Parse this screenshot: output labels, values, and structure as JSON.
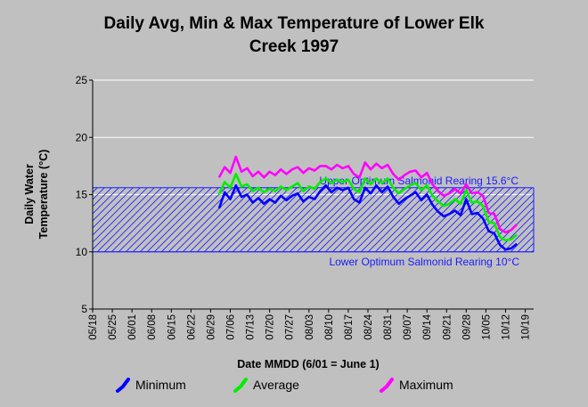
{
  "chart_data": {
    "type": "line",
    "title_line1": "Daily Avg, Min & Max Temperature of Lower Elk",
    "title_line2": "Creek 1997",
    "xlabel": "Date MMDD (6/01 = June 1)",
    "ylabel_line1": "Daily Water",
    "ylabel_line2": "Temperature (°C)",
    "ylim": [
      5,
      25
    ],
    "yticks": [
      5,
      10,
      15,
      20,
      25
    ],
    "xlim": [
      "05/18",
      "10/22"
    ],
    "xticks": [
      "05/18",
      "05/25",
      "06/01",
      "06/08",
      "06/15",
      "06/22",
      "06/29",
      "07/06",
      "07/13",
      "07/20",
      "07/27",
      "08/03",
      "08/10",
      "08/17",
      "08/24",
      "08/31",
      "09/07",
      "09/14",
      "09/21",
      "09/28",
      "10/05",
      "10/12",
      "10/19"
    ],
    "grid": "horizontal",
    "band": {
      "lower": 10,
      "upper": 15.6,
      "upper_label": "Upper Optimum Salmonid Rearing 15.6°C",
      "lower_label": "Lower Optimum Salmonid Rearing 10°C",
      "color": "#1a1aff"
    },
    "series": [
      {
        "name": "Minimum",
        "color": "#0000ff",
        "x": [
          "07/02",
          "07/04",
          "07/06",
          "07/08",
          "07/10",
          "07/12",
          "07/14",
          "07/16",
          "07/18",
          "07/20",
          "07/22",
          "07/24",
          "07/26",
          "07/28",
          "07/30",
          "08/01",
          "08/03",
          "08/05",
          "08/07",
          "08/09",
          "08/11",
          "08/13",
          "08/15",
          "08/17",
          "08/19",
          "08/21",
          "08/23",
          "08/25",
          "08/27",
          "08/29",
          "08/31",
          "09/02",
          "09/04",
          "09/06",
          "09/08",
          "09/10",
          "09/12",
          "09/14",
          "09/16",
          "09/18",
          "09/20",
          "09/22",
          "09/24",
          "09/26",
          "09/28",
          "09/30",
          "10/02",
          "10/04",
          "10/06",
          "10/08",
          "10/10",
          "10/12",
          "10/14",
          "10/16"
        ],
        "values": [
          13.8,
          15.2,
          14.6,
          15.8,
          14.8,
          15.0,
          14.3,
          14.7,
          14.2,
          14.6,
          14.3,
          14.9,
          14.5,
          14.9,
          15.1,
          14.4,
          14.8,
          14.6,
          15.3,
          15.8,
          15.2,
          15.6,
          15.4,
          15.6,
          14.6,
          14.3,
          15.6,
          15.1,
          15.8,
          15.2,
          15.7,
          14.8,
          14.2,
          14.6,
          14.9,
          15.2,
          14.5,
          15.0,
          14.1,
          13.5,
          13.1,
          13.3,
          13.6,
          13.2,
          14.6,
          13.3,
          13.4,
          12.9,
          11.8,
          11.6,
          10.6,
          10.2,
          10.3,
          10.7
        ]
      },
      {
        "name": "Average",
        "color": "#00ee00",
        "x": [
          "07/02",
          "07/04",
          "07/06",
          "07/08",
          "07/10",
          "07/12",
          "07/14",
          "07/16",
          "07/18",
          "07/20",
          "07/22",
          "07/24",
          "07/26",
          "07/28",
          "07/30",
          "08/01",
          "08/03",
          "08/05",
          "08/07",
          "08/09",
          "08/11",
          "08/13",
          "08/15",
          "08/17",
          "08/19",
          "08/21",
          "08/23",
          "08/25",
          "08/27",
          "08/29",
          "08/31",
          "09/02",
          "09/04",
          "09/06",
          "09/08",
          "09/10",
          "09/12",
          "09/14",
          "09/16",
          "09/18",
          "09/20",
          "09/22",
          "09/24",
          "09/26",
          "09/28",
          "09/30",
          "10/02",
          "10/04",
          "10/06",
          "10/08",
          "10/10",
          "10/12",
          "10/14",
          "10/16"
        ],
        "values": [
          15.0,
          16.1,
          15.6,
          16.8,
          15.7,
          15.9,
          15.3,
          15.6,
          15.2,
          15.5,
          15.3,
          15.7,
          15.4,
          15.7,
          16.0,
          15.3,
          15.7,
          15.5,
          16.1,
          16.4,
          16.0,
          16.3,
          16.1,
          16.3,
          15.5,
          15.2,
          16.4,
          15.9,
          16.4,
          16.0,
          16.4,
          15.6,
          15.1,
          15.5,
          15.8,
          16.0,
          15.4,
          15.8,
          14.9,
          14.4,
          14.0,
          14.2,
          14.6,
          14.2,
          15.4,
          14.3,
          14.4,
          14.0,
          12.6,
          12.5,
          11.3,
          11.0,
          11.1,
          11.5
        ]
      },
      {
        "name": "Maximum",
        "color": "#ff00ff",
        "x": [
          "07/02",
          "07/04",
          "07/06",
          "07/08",
          "07/10",
          "07/12",
          "07/14",
          "07/16",
          "07/18",
          "07/20",
          "07/22",
          "07/24",
          "07/26",
          "07/28",
          "07/30",
          "08/01",
          "08/03",
          "08/05",
          "08/07",
          "08/09",
          "08/11",
          "08/13",
          "08/15",
          "08/17",
          "08/19",
          "08/21",
          "08/23",
          "08/25",
          "08/27",
          "08/29",
          "08/31",
          "09/02",
          "09/04",
          "09/06",
          "09/08",
          "09/10",
          "09/12",
          "09/14",
          "09/16",
          "09/18",
          "09/20",
          "09/22",
          "09/24",
          "09/26",
          "09/28",
          "09/30",
          "10/02",
          "10/04",
          "10/06",
          "10/08",
          "10/10",
          "10/12",
          "10/14",
          "10/16"
        ],
        "values": [
          16.5,
          17.4,
          16.9,
          18.3,
          17.0,
          17.3,
          16.6,
          17.0,
          16.5,
          17.0,
          16.7,
          17.2,
          16.8,
          17.2,
          17.4,
          16.9,
          17.3,
          17.1,
          17.5,
          17.5,
          17.2,
          17.6,
          17.3,
          17.5,
          16.8,
          16.5,
          17.8,
          17.2,
          17.7,
          17.3,
          17.6,
          16.8,
          16.3,
          16.7,
          17.0,
          17.1,
          16.5,
          16.9,
          15.9,
          15.3,
          14.9,
          15.1,
          15.5,
          15.1,
          15.9,
          15.1,
          15.2,
          14.9,
          13.4,
          13.3,
          12.0,
          11.7,
          11.9,
          12.4
        ]
      }
    ]
  }
}
